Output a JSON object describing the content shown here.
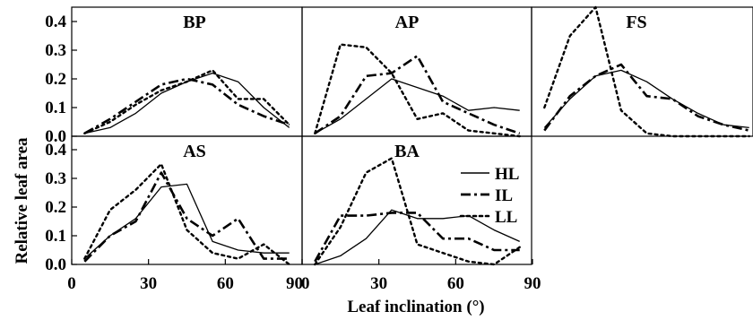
{
  "chart_data": {
    "type": "line",
    "xlabel": "Leaf inclination (°)",
    "ylabel": "Relative leaf area",
    "xlim": [
      0,
      90
    ],
    "ylim": [
      0,
      0.45
    ],
    "x_ticks": [
      "0",
      "30",
      "60",
      "90"
    ],
    "y_ticks": [
      "0.0",
      "0.1",
      "0.2",
      "0.3",
      "0.4"
    ],
    "series_styles": [
      {
        "name": "HL",
        "line": "solid"
      },
      {
        "name": "IL",
        "line": "dash-dot"
      },
      {
        "name": "LL",
        "line": "dotted"
      }
    ],
    "legend": {
      "placement": "inside BA panel, right",
      "entries": [
        "HL",
        "IL",
        "LL"
      ]
    },
    "grid": false,
    "panels": [
      {
        "title": "BP",
        "x": [
          5,
          15,
          25,
          35,
          45,
          55,
          65,
          75,
          85
        ],
        "series": [
          {
            "name": "HL",
            "values": [
              0.01,
              0.03,
              0.08,
              0.15,
              0.19,
              0.22,
              0.19,
              0.1,
              0.03
            ]
          },
          {
            "name": "IL",
            "values": [
              0.01,
              0.06,
              0.12,
              0.18,
              0.2,
              0.18,
              0.11,
              0.07,
              0.04
            ]
          },
          {
            "name": "LL",
            "values": [
              0.01,
              0.05,
              0.11,
              0.16,
              0.19,
              0.23,
              0.13,
              0.13,
              0.04
            ]
          }
        ]
      },
      {
        "title": "AP",
        "x": [
          5,
          15,
          25,
          35,
          45,
          55,
          65,
          75,
          85
        ],
        "series": [
          {
            "name": "HL",
            "values": [
              0.01,
              0.06,
              0.13,
              0.2,
              0.17,
              0.14,
              0.09,
              0.1,
              0.09
            ]
          },
          {
            "name": "IL",
            "values": [
              0.01,
              0.07,
              0.21,
              0.22,
              0.28,
              0.12,
              0.08,
              0.04,
              0.01
            ]
          },
          {
            "name": "LL",
            "values": [
              0.01,
              0.32,
              0.31,
              0.22,
              0.06,
              0.08,
              0.02,
              0.01,
              0.0
            ]
          }
        ]
      },
      {
        "title": "FS",
        "x": [
          5,
          15,
          25,
          35,
          45,
          55,
          65,
          75,
          85
        ],
        "series": [
          {
            "name": "HL",
            "values": [
              0.03,
              0.13,
              0.21,
              0.23,
              0.19,
              0.13,
              0.08,
              0.04,
              0.03
            ]
          },
          {
            "name": "IL",
            "values": [
              0.02,
              0.14,
              0.21,
              0.25,
              0.14,
              0.13,
              0.07,
              0.04,
              0.02
            ]
          },
          {
            "name": "LL",
            "values": [
              0.1,
              0.35,
              0.45,
              0.09,
              0.01,
              0.0,
              0.0,
              0.0,
              0.0
            ]
          }
        ]
      },
      {
        "title": "AS",
        "x": [
          5,
          15,
          25,
          35,
          45,
          55,
          65,
          75,
          85
        ],
        "series": [
          {
            "name": "HL",
            "values": [
              0.02,
              0.1,
              0.16,
              0.27,
              0.28,
              0.08,
              0.05,
              0.04,
              0.04
            ]
          },
          {
            "name": "IL",
            "values": [
              0.01,
              0.1,
              0.15,
              0.32,
              0.16,
              0.1,
              0.16,
              0.02,
              0.02
            ]
          },
          {
            "name": "LL",
            "values": [
              0.02,
              0.19,
              0.26,
              0.35,
              0.12,
              0.04,
              0.02,
              0.07,
              0.0
            ]
          }
        ]
      },
      {
        "title": "BA",
        "x": [
          5,
          15,
          25,
          35,
          45,
          55,
          65,
          75,
          85
        ],
        "series": [
          {
            "name": "HL",
            "values": [
              0.0,
              0.03,
              0.09,
              0.19,
              0.16,
              0.16,
              0.17,
              0.12,
              0.08
            ]
          },
          {
            "name": "IL",
            "values": [
              0.01,
              0.17,
              0.17,
              0.18,
              0.18,
              0.09,
              0.09,
              0.05,
              0.05
            ]
          },
          {
            "name": "LL",
            "values": [
              0.0,
              0.13,
              0.32,
              0.37,
              0.07,
              0.04,
              0.01,
              0.0,
              0.06
            ]
          }
        ]
      }
    ]
  }
}
